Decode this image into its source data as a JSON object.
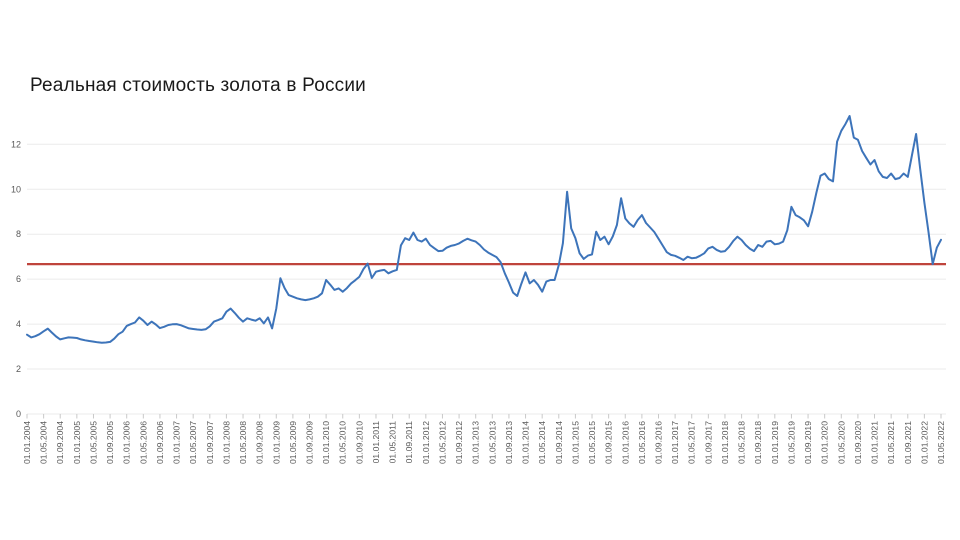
{
  "title": "Реальная стоимость золота в России",
  "colors": {
    "series_line": "#3d74ba",
    "reference_line": "#bf443c",
    "gridline": "#ebebeb",
    "tick": "#c9c9c9",
    "axis_label": "#595959",
    "title_text": "#1a1a1a",
    "background": "#ffffff"
  },
  "chart_data": {
    "type": "line",
    "title": "Реальная стоимость золота в России",
    "xlabel": "",
    "ylabel": "",
    "ylim": [
      0,
      12
    ],
    "y_ticks": [
      0,
      2,
      4,
      6,
      8,
      10,
      12
    ],
    "grid": "horizontal",
    "legend": "none",
    "x_start": "01.01.2004",
    "x_end": "01.05.2022",
    "x_step_months": 1,
    "tick_every_months": 4,
    "tick_labels": [
      "01.01.2004",
      "01.05.2004",
      "01.09.2004",
      "01.01.2005",
      "01.05.2005",
      "01.09.2005",
      "01.01.2006",
      "01.05.2006",
      "01.09.2006",
      "01.01.2007",
      "01.05.2007",
      "01.09.2007",
      "01.01.2008",
      "01.05.2008",
      "01.09.2008",
      "01.01.2009",
      "01.05.2009",
      "01.09.2009",
      "01.01.2010",
      "01.05.2010",
      "01.09.2010",
      "01.01.2011",
      "01.05.2011",
      "01.09.2011",
      "01.01.2012",
      "01.05.2012",
      "01.09.2012",
      "01.01.2013",
      "01.05.2013",
      "01.09.2013",
      "01.01.2014",
      "01.05.2014",
      "01.09.2014",
      "01.01.2015",
      "01.05.2015",
      "01.09.2015",
      "01.01.2016",
      "01.05.2016",
      "01.09.2016",
      "01.01.2017",
      "01.05.2017",
      "01.09.2017",
      "01.01.2018",
      "01.05.2018",
      "01.09.2018",
      "01.01.2019",
      "01.05.2019",
      "01.09.2019",
      "01.01.2020",
      "01.05.2020",
      "01.09.2020",
      "01.01.2021",
      "01.05.2021",
      "01.09.2021",
      "01.01.2022",
      "01.05.2022"
    ],
    "series": [
      {
        "name": "Реальная стоимость золота",
        "values": [
          3.53,
          3.41,
          3.46,
          3.55,
          3.68,
          3.8,
          3.62,
          3.45,
          3.32,
          3.37,
          3.41,
          3.4,
          3.38,
          3.32,
          3.28,
          3.25,
          3.22,
          3.19,
          3.17,
          3.18,
          3.21,
          3.35,
          3.55,
          3.66,
          3.92,
          4.0,
          4.07,
          4.3,
          4.15,
          3.96,
          4.11,
          3.98,
          3.82,
          3.88,
          3.96,
          3.99,
          4.0,
          3.95,
          3.88,
          3.81,
          3.78,
          3.76,
          3.74,
          3.77,
          3.9,
          4.11,
          4.18,
          4.26,
          4.55,
          4.69,
          4.5,
          4.28,
          4.11,
          4.26,
          4.2,
          4.15,
          4.26,
          4.03,
          4.3,
          3.81,
          4.7,
          6.04,
          5.6,
          5.29,
          5.22,
          5.15,
          5.1,
          5.07,
          5.1,
          5.15,
          5.22,
          5.37,
          5.96,
          5.75,
          5.52,
          5.59,
          5.44,
          5.6,
          5.81,
          5.95,
          6.11,
          6.45,
          6.69,
          6.05,
          6.33,
          6.38,
          6.41,
          6.26,
          6.35,
          6.41,
          7.5,
          7.82,
          7.74,
          8.07,
          7.74,
          7.67,
          7.8,
          7.52,
          7.38,
          7.25,
          7.26,
          7.4,
          7.48,
          7.52,
          7.59,
          7.7,
          7.8,
          7.73,
          7.67,
          7.52,
          7.32,
          7.18,
          7.08,
          6.98,
          6.76,
          6.26,
          5.85,
          5.4,
          5.25,
          5.8,
          6.3,
          5.81,
          5.96,
          5.75,
          5.44,
          5.89,
          5.96,
          5.96,
          6.63,
          7.6,
          9.89,
          8.26,
          7.82,
          7.15,
          6.9,
          7.05,
          7.1,
          8.11,
          7.74,
          7.89,
          7.55,
          7.9,
          8.41,
          9.6,
          8.7,
          8.48,
          8.33,
          8.63,
          8.85,
          8.5,
          8.3,
          8.1,
          7.8,
          7.5,
          7.2,
          7.08,
          7.04,
          6.95,
          6.85,
          7.0,
          6.93,
          6.95,
          7.04,
          7.15,
          7.37,
          7.44,
          7.3,
          7.22,
          7.25,
          7.44,
          7.7,
          7.89,
          7.74,
          7.52,
          7.35,
          7.25,
          7.52,
          7.44,
          7.67,
          7.7,
          7.55,
          7.58,
          7.67,
          8.18,
          9.22,
          8.85,
          8.75,
          8.62,
          8.35,
          9.0,
          9.85,
          10.6,
          10.7,
          10.45,
          10.35,
          12.12,
          12.6,
          12.9,
          13.26,
          12.3,
          12.2,
          11.7,
          11.4,
          11.1,
          11.3,
          10.8,
          10.55,
          10.5,
          10.7,
          10.45,
          10.5,
          10.7,
          10.55,
          11.5,
          12.46,
          10.9,
          9.4,
          8.1,
          6.67,
          7.4,
          7.75
        ]
      }
    ],
    "reference_line_value": 6.67
  }
}
